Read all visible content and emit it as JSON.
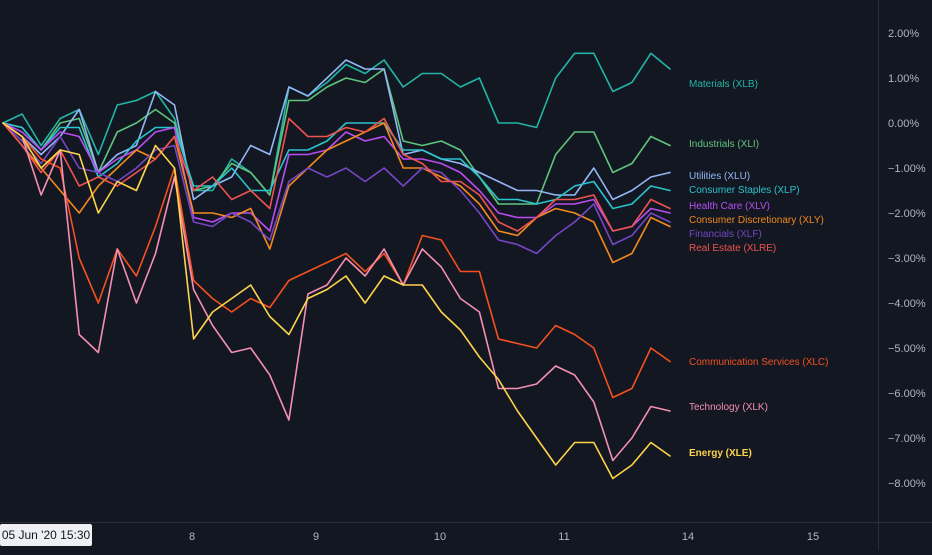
{
  "chart_data": {
    "type": "line",
    "title": "",
    "xlabel": "",
    "ylabel": "",
    "x_ticks": [
      "8",
      "9",
      "10",
      "11",
      "14",
      "15"
    ],
    "y_ticks": [
      "2.00%",
      "1.00%",
      "0.00%",
      "−1.00%",
      "−2.00%",
      "−3.00%",
      "−4.00%",
      "−5.00%",
      "−6.00%",
      "−7.00%",
      "−8.00%"
    ],
    "ylim": [
      -8.8,
      2.7
    ],
    "grid": false,
    "legend": "right",
    "series": [
      {
        "name": "Materials (XLB)",
        "color": "#22b5a5",
        "values": [
          0,
          0.2,
          -0.5,
          0.1,
          0.3,
          -0.7,
          0.4,
          0.5,
          0.7,
          0.1,
          -1.5,
          -1.5,
          -0.8,
          -1.1,
          -1.6,
          0.8,
          0.6,
          0.9,
          1.3,
          1.1,
          1.4,
          0.8,
          1.1,
          1.1,
          0.8,
          1.0,
          0,
          0,
          -0.1,
          1.0,
          1.55,
          1.55,
          0.7,
          0.9,
          1.55,
          1.2
        ]
      },
      {
        "name": "Industrials (XLI)",
        "color": "#5fc47c",
        "values": [
          0,
          -0.1,
          -0.6,
          0,
          0.1,
          -1.1,
          -0.2,
          0,
          0.3,
          0,
          -1.5,
          -1.4,
          -0.9,
          -1.1,
          -1.6,
          0.5,
          0.5,
          0.8,
          1.0,
          0.9,
          1.2,
          -0.4,
          -0.5,
          -0.4,
          -0.6,
          -1.2,
          -1.8,
          -1.8,
          -1.8,
          -0.7,
          -0.2,
          -0.2,
          -1.1,
          -0.9,
          -0.3,
          -0.5
        ]
      },
      {
        "name": "Utilities (XLU)",
        "color": "#91b8f5",
        "values": [
          0,
          -0.3,
          -0.7,
          -0.3,
          0.3,
          -1.1,
          -0.7,
          -0.5,
          0.7,
          0.4,
          -1.7,
          -1.4,
          -1.2,
          -0.5,
          -0.7,
          0.8,
          0.6,
          1.0,
          1.4,
          1.2,
          1.2,
          -0.7,
          -0.6,
          -0.8,
          -0.9,
          -1.1,
          -1.3,
          -1.5,
          -1.5,
          -1.6,
          -1.6,
          -1.0,
          -1.7,
          -1.5,
          -1.2,
          -1.1
        ]
      },
      {
        "name": "Consumer Staples (XLP)",
        "color": "#29c4cc",
        "values": [
          0,
          -0.1,
          -0.6,
          -0.1,
          -0.1,
          -1.2,
          -0.9,
          -0.4,
          -0.1,
          -0.1,
          -1.4,
          -1.4,
          -1.0,
          -1.5,
          -1.5,
          -0.6,
          -0.6,
          -0.4,
          0,
          0,
          0,
          -0.6,
          -0.6,
          -0.8,
          -0.8,
          -1.2,
          -1.7,
          -1.7,
          -1.8,
          -1.7,
          -1.4,
          -1.3,
          -1.9,
          -1.8,
          -1.4,
          -1.5
        ]
      },
      {
        "name": "Health Care (XLV)",
        "color": "#b84df0",
        "values": [
          0,
          -0.2,
          -0.6,
          -0.2,
          -0.3,
          -1.1,
          -0.8,
          -0.6,
          -0.2,
          -0.1,
          -2.1,
          -2.2,
          -2.0,
          -2.0,
          -2.4,
          -0.7,
          -0.7,
          -0.6,
          -0.2,
          -0.4,
          -0.3,
          -0.8,
          -0.8,
          -0.9,
          -1.1,
          -1.5,
          -2.0,
          -2.1,
          -2.1,
          -1.8,
          -1.8,
          -1.7,
          -2.4,
          -2.3,
          -1.9,
          -2.0
        ]
      },
      {
        "name": "Consumer Discretionary (XLY)",
        "color": "#f28a1c",
        "values": [
          0,
          -0.5,
          -1.0,
          -1.5,
          -2.0,
          -1.4,
          -1.0,
          -0.6,
          -0.8,
          -0.3,
          -2.0,
          -2.0,
          -2.1,
          -1.9,
          -2.8,
          -1.4,
          -1.0,
          -0.6,
          -0.4,
          -0.2,
          0,
          -1.0,
          -1.0,
          -1.2,
          -1.4,
          -1.8,
          -2.4,
          -2.5,
          -2.1,
          -1.9,
          -2.0,
          -2.2,
          -3.1,
          -2.9,
          -2.1,
          -2.3
        ]
      },
      {
        "name": "Financials (XLF)",
        "color": "#7546c4",
        "values": [
          0,
          -0.4,
          -0.9,
          -0.3,
          -1.0,
          -1.1,
          -1.3,
          -1.0,
          -0.6,
          -0.5,
          -2.2,
          -2.3,
          -2.0,
          -2.2,
          -2.6,
          -1.3,
          -1.0,
          -1.2,
          -1.0,
          -1.3,
          -1.0,
          -1.4,
          -1.0,
          -1.1,
          -1.5,
          -2.0,
          -2.6,
          -2.7,
          -2.9,
          -2.5,
          -2.2,
          -1.8,
          -2.7,
          -2.5,
          -2.0,
          -2.2
        ]
      },
      {
        "name": "Real Estate (XLRE)",
        "color": "#ef5350",
        "values": [
          0,
          -0.5,
          -1.1,
          -0.6,
          -1.4,
          -1.2,
          -1.4,
          -1.1,
          -0.8,
          -0.3,
          -1.5,
          -1.2,
          -1.7,
          -1.5,
          -1.9,
          0.1,
          -0.3,
          -0.3,
          -0.1,
          -0.2,
          0.1,
          -0.7,
          -0.9,
          -1.3,
          -1.3,
          -1.6,
          -2.2,
          -2.4,
          -2.1,
          -1.7,
          -1.7,
          -1.6,
          -2.4,
          -2.3,
          -1.7,
          -1.9
        ]
      },
      {
        "name": "Communication Services (XLC)",
        "color": "#f4511e",
        "values": [
          0,
          -0.3,
          -0.8,
          -1.0,
          -3.0,
          -4.0,
          -2.8,
          -3.4,
          -2.3,
          -1.0,
          -3.5,
          -3.9,
          -4.2,
          -3.9,
          -4.1,
          -3.5,
          -3.3,
          -3.1,
          -2.9,
          -3.3,
          -2.9,
          -3.6,
          -2.5,
          -2.6,
          -3.3,
          -3.3,
          -4.8,
          -4.9,
          -5.0,
          -4.5,
          -4.7,
          -5.0,
          -6.1,
          -5.9,
          -5.0,
          -5.3
        ]
      },
      {
        "name": "Technology (XLK)",
        "color": "#f48fb1",
        "values": [
          0,
          -0.3,
          -1.6,
          -0.6,
          -4.7,
          -5.1,
          -2.8,
          -4.0,
          -2.9,
          -1.2,
          -3.7,
          -4.5,
          -5.1,
          -5.0,
          -5.6,
          -6.6,
          -3.8,
          -3.6,
          -3.0,
          -3.4,
          -2.8,
          -3.6,
          -2.8,
          -3.2,
          -3.9,
          -4.2,
          -5.9,
          -5.9,
          -5.8,
          -5.4,
          -5.6,
          -6.2,
          -7.5,
          -7.0,
          -6.3,
          -6.4
        ]
      },
      {
        "name": "Energy (XLE)",
        "color": "#fdd44a",
        "values": [
          0,
          -0.3,
          -1.0,
          -0.6,
          -0.7,
          -2.0,
          -1.3,
          -1.5,
          -0.5,
          -1.0,
          -4.8,
          -4.2,
          -3.9,
          -3.6,
          -4.3,
          -4.7,
          -3.9,
          -3.7,
          -3.4,
          -4.0,
          -3.4,
          -3.6,
          -3.6,
          -4.2,
          -4.6,
          -5.2,
          -5.7,
          -6.4,
          -7.0,
          -7.6,
          -7.1,
          -7.1,
          -7.9,
          -7.6,
          -7.1,
          -7.4
        ]
      }
    ]
  },
  "time_badge": "05 Jun '20   15:30"
}
